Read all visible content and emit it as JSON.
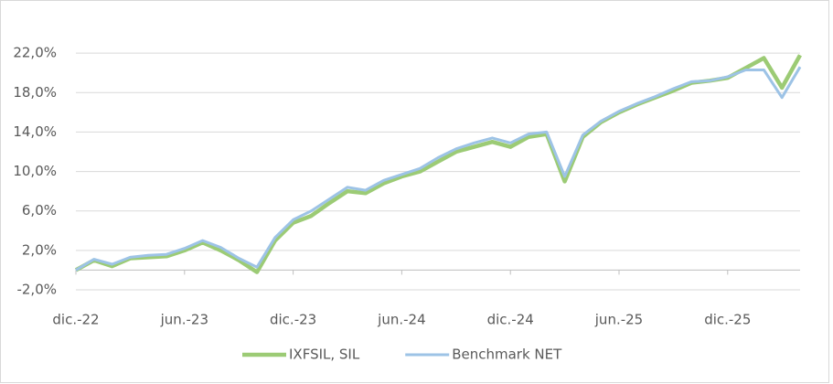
{
  "chart_data": {
    "type": "line",
    "categories": [
      "dic.-22",
      null,
      null,
      null,
      null,
      null,
      "jun.-23",
      null,
      null,
      null,
      null,
      null,
      "dic.-23",
      null,
      null,
      null,
      null,
      null,
      "jun.-24",
      null,
      null,
      null,
      null,
      null,
      "dic.-24",
      null,
      null,
      null,
      null,
      null,
      "jun.-25",
      null,
      null,
      null,
      null,
      null,
      "dic.-25",
      null,
      null,
      null,
      null
    ],
    "series": [
      {
        "name": "IXFSIL, SIL",
        "color": "#9ccb75",
        "values": [
          0.0,
          1.0,
          0.4,
          1.2,
          1.3,
          1.4,
          2.0,
          2.8,
          2.0,
          1.0,
          -0.2,
          3.0,
          4.8,
          5.5,
          6.8,
          8.0,
          7.8,
          8.8,
          9.5,
          10.0,
          11.0,
          12.0,
          12.5,
          13.0,
          12.5,
          13.5,
          13.8,
          9.0,
          13.5,
          15.0,
          16.0,
          16.8,
          17.5,
          18.2,
          19.0,
          19.2,
          19.5,
          20.5,
          21.5,
          18.5,
          21.8
        ]
      },
      {
        "name": "Benchmark NET",
        "color": "#9dc3e6",
        "values": [
          0.0,
          1.1,
          0.6,
          1.3,
          1.5,
          1.6,
          2.2,
          3.0,
          2.3,
          1.2,
          0.3,
          3.3,
          5.1,
          6.0,
          7.2,
          8.4,
          8.1,
          9.1,
          9.7,
          10.3,
          11.4,
          12.3,
          12.9,
          13.4,
          12.9,
          13.8,
          14.0,
          9.5,
          13.7,
          15.1,
          16.1,
          16.9,
          17.6,
          18.4,
          19.1,
          19.2,
          19.6,
          20.3,
          20.3,
          17.5,
          20.6
        ]
      }
    ],
    "ylim": [
      -2,
      26
    ],
    "yticks": [
      {
        "value": -2,
        "label": "-2,0%"
      },
      {
        "value": 2,
        "label": "2,0%"
      },
      {
        "value": 6,
        "label": "6,0%"
      },
      {
        "value": 10,
        "label": "10,0%"
      },
      {
        "value": 14,
        "label": "14,0%"
      },
      {
        "value": 18,
        "label": "18,0%"
      },
      {
        "value": 22,
        "label": "22,0%"
      }
    ],
    "grid": true,
    "legend": "bottom"
  }
}
